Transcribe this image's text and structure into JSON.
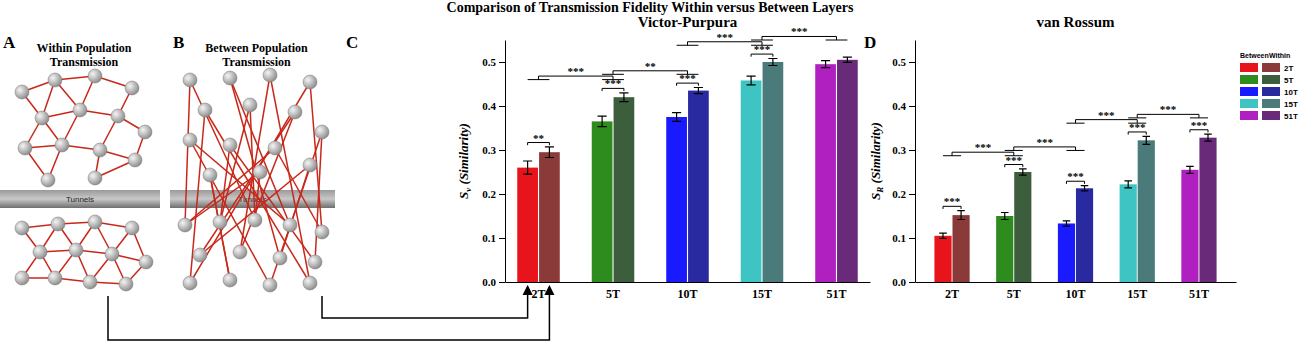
{
  "title": "Comparison of Transmission Fidelity Within versus Between Layers",
  "diagrams": [
    {
      "label": "A",
      "title_lines": [
        "Within Population",
        "Transmission"
      ],
      "tunnel_label": "Tunnels",
      "type": "within"
    },
    {
      "label": "B",
      "title_lines": [
        "Between Population",
        "Transmission"
      ],
      "tunnel_label": "Tunnels",
      "type": "between"
    }
  ],
  "chart_data": [
    {
      "type": "bar",
      "panel_label": "C",
      "title": "Victor-Purpura",
      "y_label": "Sv (Similarity)",
      "categories": [
        "2T",
        "5T",
        "10T",
        "15T",
        "51T"
      ],
      "series": [
        {
          "name": "Between",
          "colors": [
            "#e8141c",
            "#2e8b1e",
            "#1a1aff",
            "#3fc4c4",
            "#b020c0"
          ],
          "values": [
            0.26,
            0.365,
            0.375,
            0.458,
            0.495
          ],
          "errors": [
            0.015,
            0.012,
            0.01,
            0.01,
            0.008
          ]
        },
        {
          "name": "Within",
          "colors": [
            "#8b3a3a",
            "#3d5e3d",
            "#2a2aa0",
            "#4a7a7a",
            "#6a2a7a"
          ],
          "values": [
            0.295,
            0.42,
            0.435,
            0.5,
            0.505
          ],
          "errors": [
            0.012,
            0.01,
            0.007,
            0.008,
            0.006
          ]
        }
      ],
      "ylim": [
        0,
        0.55
      ],
      "yticks": [
        {
          "value": 0,
          "label": "0.0"
        },
        0.1,
        0.2,
        0.3,
        0.4,
        0.5
      ],
      "annotations": {
        "within_pair": [
          "**",
          "***",
          "***",
          "***",
          null
        ],
        "across_categories": [
          "***",
          "**",
          "***",
          "***"
        ]
      }
    },
    {
      "type": "bar",
      "panel_label": "D",
      "title": "van Rossum",
      "y_label": "SR (Similarity)",
      "categories": [
        "2T",
        "5T",
        "10T",
        "15T",
        "51T"
      ],
      "series": [
        {
          "name": "Between",
          "colors": [
            "#e8141c",
            "#2e8b1e",
            "#1a1aff",
            "#3fc4c4",
            "#b020c0"
          ],
          "values": [
            0.105,
            0.15,
            0.133,
            0.222,
            0.255
          ],
          "errors": [
            0.006,
            0.008,
            0.006,
            0.008,
            0.008
          ]
        },
        {
          "name": "Within",
          "colors": [
            "#8b3a3a",
            "#3d5e3d",
            "#2a2aa0",
            "#4a7a7a",
            "#6a2a7a"
          ],
          "values": [
            0.152,
            0.25,
            0.213,
            0.322,
            0.328
          ],
          "errors": [
            0.01,
            0.007,
            0.006,
            0.009,
            0.008
          ]
        }
      ],
      "ylim": [
        0,
        0.55
      ],
      "yticks": [
        {
          "value": 0,
          "label": "0.0"
        },
        0.1,
        0.2,
        0.3,
        0.4,
        0.5
      ],
      "annotations": {
        "within_pair": [
          "***",
          "***",
          "***",
          "***",
          "***"
        ],
        "across_categories": [
          "***",
          "***",
          "***",
          "***"
        ]
      }
    }
  ]
}
